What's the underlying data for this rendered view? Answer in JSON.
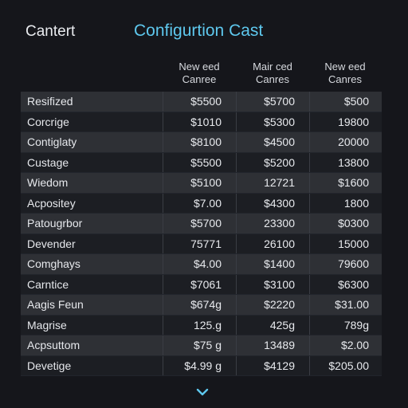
{
  "header": {
    "app_name": "Cantert",
    "title": "Configurtion Cast"
  },
  "columns": [
    {
      "line1": "New eed",
      "line2": "Canree"
    },
    {
      "line1": "Mair ced",
      "line2": "Canres"
    },
    {
      "line1": "New eed",
      "line2": "Canres"
    }
  ],
  "rows": [
    {
      "label": "Resifized",
      "values": [
        "$5500",
        "$5700",
        "$500"
      ]
    },
    {
      "label": "Corcrige",
      "values": [
        "$1010",
        "$5300",
        "19800"
      ]
    },
    {
      "label": "Contiglaty",
      "values": [
        "$8100",
        "$4500",
        "20000"
      ]
    },
    {
      "label": "Custage",
      "values": [
        "$5500",
        "$5200",
        "13800"
      ]
    },
    {
      "label": "Wiedom",
      "values": [
        "$5100",
        "12721",
        "$1600"
      ]
    },
    {
      "label": "Acpositey",
      "values": [
        "$7.00",
        "$4300",
        "1800"
      ]
    },
    {
      "label": "Patougrbor",
      "values": [
        "$5700",
        "23300",
        "$0300"
      ]
    },
    {
      "label": "Devender",
      "values": [
        "75771",
        "26100",
        "15000"
      ]
    },
    {
      "label": "Comghays",
      "values": [
        "$4.00",
        "$1400",
        "79600"
      ]
    },
    {
      "label": "Carntice",
      "values": [
        "$7061",
        "$3100",
        "$6300"
      ]
    },
    {
      "label": "Aagis Feun",
      "values": [
        "$674g",
        "$2220",
        "$31.00"
      ]
    },
    {
      "label": "Magrise",
      "values": [
        "125.g",
        "425g",
        "789g"
      ]
    },
    {
      "label": "Acpsuttom",
      "values": [
        "$75 g",
        "13489",
        "$2.00"
      ]
    },
    {
      "label": "Devetige",
      "values": [
        "$4.99 g",
        "$4129",
        "$205.00"
      ]
    }
  ],
  "icons": {
    "scroll": "chevron-down-icon"
  },
  "colors": {
    "background": "#15161b",
    "accent": "#5ec8ee",
    "row_odd": "#2e3035",
    "row_even": "#1c1e23"
  }
}
